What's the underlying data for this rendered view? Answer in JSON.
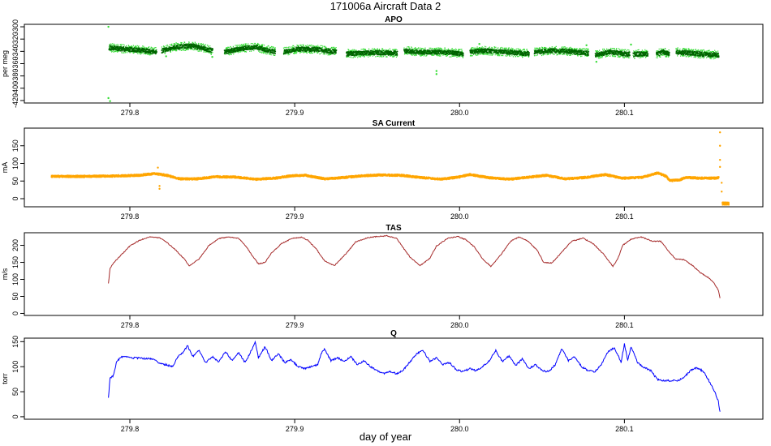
{
  "figure": {
    "title": "171006a   Aircraft Data 2",
    "xlabel": "day of year"
  },
  "chart_data": [
    {
      "type": "scatter",
      "title": "APO",
      "xlabel": "",
      "ylabel": "per meg",
      "xlim": [
        279.736,
        280.184
      ],
      "ylim": [
        -424,
        -296
      ],
      "xticks": [
        279.8,
        279.9,
        280.0,
        280.1
      ],
      "xtick_labels": [
        "279.8",
        "279.9",
        "280.0",
        "280.1"
      ],
      "yticks": [
        -420,
        -400,
        -380,
        -360,
        -340,
        -320,
        -300
      ],
      "ytick_labels": [
        "-420",
        "-400",
        "-380",
        "-360",
        "-340",
        "-320",
        "-300"
      ],
      "tick_side_rotated": true,
      "colors": {
        "raw": "#33dd33",
        "smoothed": "#006400"
      },
      "segments": [
        [
          279.787,
          279.816
        ],
        [
          279.819,
          279.85
        ],
        [
          279.857,
          279.888
        ],
        [
          279.893,
          279.925
        ],
        [
          279.931,
          279.962
        ],
        [
          279.966,
          280.002
        ],
        [
          280.006,
          280.042
        ],
        [
          280.045,
          280.078
        ],
        [
          280.082,
          280.103
        ],
        [
          280.105,
          280.114
        ],
        [
          280.119,
          280.127
        ],
        [
          280.131,
          280.157
        ]
      ],
      "series": [
        {
          "x": [
            279.787,
            279.795,
            279.805,
            279.816,
            279.819,
            279.828,
            279.838,
            279.85,
            279.857,
            279.866,
            279.876,
            279.888,
            279.893,
            279.902,
            279.913,
            279.925,
            279.931,
            279.94,
            279.95,
            279.962,
            279.966,
            279.975,
            279.988,
            280.002,
            280.006,
            280.015,
            280.028,
            280.042,
            280.045,
            280.055,
            280.066,
            280.078,
            280.082,
            280.091,
            280.103,
            280.105,
            280.11,
            280.114,
            280.119,
            280.123,
            280.127,
            280.131,
            280.14,
            280.15,
            280.157
          ],
          "y": [
            -333,
            -335,
            -337,
            -340,
            -338,
            -332,
            -330,
            -338,
            -340,
            -335,
            -332,
            -340,
            -340,
            -335,
            -336,
            -340,
            -343,
            -342,
            -341,
            -342,
            -338,
            -340,
            -340,
            -343,
            -340,
            -338,
            -340,
            -343,
            -340,
            -338,
            -339,
            -342,
            -345,
            -340,
            -344,
            -344,
            -343,
            -343,
            -344,
            -340,
            -343,
            -340,
            -342,
            -344,
            -345
          ]
        }
      ],
      "outliers": [
        {
          "x": 279.787,
          "y": -300
        },
        {
          "x": 279.787,
          "y": -416
        },
        {
          "x": 279.788,
          "y": -421
        },
        {
          "x": 279.986,
          "y": -372
        },
        {
          "x": 279.986,
          "y": -377
        },
        {
          "x": 280.104,
          "y": -329
        },
        {
          "x": 280.077,
          "y": -330
        },
        {
          "x": 280.083,
          "y": -357
        },
        {
          "x": 280.012,
          "y": -328
        },
        {
          "x": 279.822,
          "y": -348
        },
        {
          "x": 279.85,
          "y": -349
        }
      ]
    },
    {
      "type": "scatter",
      "title": "SA Current",
      "xlabel": "",
      "ylabel": "mA",
      "xlim": [
        279.736,
        280.184
      ],
      "ylim": [
        -23,
        200
      ],
      "xticks": [
        279.8,
        279.9,
        280.0,
        280.1
      ],
      "xtick_labels": [
        "279.8",
        "279.9",
        "280.0",
        "280.1"
      ],
      "yticks": [
        0,
        50,
        100,
        150
      ],
      "ytick_labels": [
        "0",
        "50",
        "100",
        "150"
      ],
      "color": "#ffa500",
      "x": [
        279.752,
        279.77,
        279.79,
        279.805,
        279.815,
        279.822,
        279.83,
        279.84,
        279.852,
        279.864,
        279.876,
        279.888,
        279.898,
        279.906,
        279.918,
        279.93,
        279.941,
        279.952,
        279.964,
        279.976,
        279.988,
        279.999,
        280.006,
        280.018,
        280.03,
        280.04,
        280.052,
        280.064,
        280.076,
        280.088,
        280.098,
        280.11,
        280.12,
        280.125,
        280.127,
        280.133,
        280.137,
        280.145,
        280.155,
        280.157
      ],
      "y": [
        65,
        65,
        66,
        68,
        73,
        68,
        58,
        58,
        64,
        63,
        57,
        60,
        67,
        68,
        58,
        62,
        67,
        69,
        68,
        62,
        57,
        63,
        70,
        61,
        57,
        62,
        68,
        58,
        62,
        70,
        60,
        62,
        75,
        65,
        53,
        55,
        62,
        60,
        60,
        62
      ],
      "tail": {
        "x_start": 280.159,
        "x_end": 280.163,
        "y": -12
      },
      "outliers": [
        {
          "x": 279.818,
          "y": 28
        },
        {
          "x": 279.818,
          "y": 36
        },
        {
          "x": 279.817,
          "y": 88
        },
        {
          "x": 280.158,
          "y": 188
        },
        {
          "x": 280.158,
          "y": 150
        },
        {
          "x": 280.158,
          "y": 110
        },
        {
          "x": 280.158,
          "y": 90
        },
        {
          "x": 280.159,
          "y": 45
        },
        {
          "x": 280.159,
          "y": 20
        }
      ]
    },
    {
      "type": "line",
      "title": "TAS",
      "xlabel": "",
      "ylabel": "m/s",
      "xlim": [
        279.736,
        280.184
      ],
      "ylim": [
        -6,
        237
      ],
      "xticks": [
        279.8,
        279.9,
        280.0,
        280.1
      ],
      "xtick_labels": [
        "279.8",
        "279.9",
        "280.0",
        "280.1"
      ],
      "yticks": [
        0,
        50,
        100,
        150,
        200
      ],
      "ytick_labels": [
        "0",
        "50",
        "100",
        "150",
        "200"
      ],
      "color": "#a52a2a",
      "x": [
        279.787,
        279.788,
        279.79,
        279.795,
        279.8,
        279.806,
        279.812,
        279.818,
        279.822,
        279.827,
        279.833,
        279.836,
        279.842,
        279.848,
        279.854,
        279.86,
        279.866,
        279.87,
        279.874,
        279.878,
        279.882,
        279.886,
        279.892,
        279.898,
        279.904,
        279.908,
        279.913,
        279.918,
        279.924,
        279.931,
        279.937,
        279.944,
        279.95,
        279.956,
        279.962,
        279.965,
        279.97,
        279.976,
        279.982,
        279.986,
        279.993,
        279.999,
        280.004,
        280.009,
        280.014,
        280.019,
        280.025,
        280.031,
        280.036,
        280.041,
        280.047,
        280.051,
        280.056,
        280.062,
        280.068,
        280.075,
        280.081,
        280.087,
        280.093,
        280.096,
        280.099,
        280.104,
        280.11,
        280.117,
        280.122,
        280.127,
        280.131,
        280.136,
        280.141,
        280.146,
        280.151,
        280.154,
        280.157,
        280.158
      ],
      "y": [
        88,
        132,
        148,
        173,
        198,
        215,
        225,
        222,
        210,
        190,
        160,
        140,
        160,
        200,
        220,
        225,
        220,
        200,
        172,
        145,
        150,
        178,
        205,
        220,
        224,
        215,
        190,
        155,
        140,
        175,
        210,
        222,
        226,
        228,
        220,
        198,
        165,
        140,
        162,
        198,
        221,
        226,
        216,
        195,
        160,
        138,
        172,
        212,
        224,
        214,
        186,
        150,
        148,
        180,
        212,
        221,
        205,
        176,
        138,
        160,
        200,
        218,
        225,
        212,
        212,
        182,
        160,
        158,
        142,
        120,
        105,
        92,
        68,
        45
      ]
    },
    {
      "type": "line",
      "title": "Q",
      "xlabel": "",
      "ylabel": "torr",
      "xlim": [
        279.736,
        280.184
      ],
      "ylim": [
        -5,
        157
      ],
      "xticks": [
        279.8,
        279.9,
        280.0,
        280.1
      ],
      "xtick_labels": [
        "279.8",
        "279.9",
        "280.0",
        "280.1"
      ],
      "yticks": [
        0,
        50,
        100,
        150
      ],
      "ytick_labels": [
        "0",
        "50",
        "100",
        "150"
      ],
      "color": "#0000ff",
      "x": [
        279.787,
        279.788,
        279.79,
        279.792,
        279.795,
        279.8,
        279.81,
        279.815,
        279.818,
        279.822,
        279.826,
        279.829,
        279.832,
        279.835,
        279.838,
        279.842,
        279.846,
        279.85,
        279.854,
        279.858,
        279.862,
        279.866,
        279.87,
        279.874,
        279.876,
        279.878,
        279.882,
        279.886,
        279.89,
        279.894,
        279.898,
        279.902,
        279.906,
        279.91,
        279.914,
        279.916,
        279.918,
        279.922,
        279.926,
        279.93,
        279.934,
        279.938,
        279.942,
        279.946,
        279.95,
        279.954,
        279.958,
        279.962,
        279.966,
        279.97,
        279.974,
        279.978,
        279.982,
        279.986,
        279.99,
        279.994,
        279.998,
        280.002,
        280.006,
        280.01,
        280.014,
        280.018,
        280.022,
        280.026,
        280.03,
        280.034,
        280.038,
        280.042,
        280.046,
        280.05,
        280.054,
        280.058,
        280.062,
        280.066,
        280.07,
        280.074,
        280.078,
        280.082,
        280.086,
        280.09,
        280.094,
        280.098,
        280.1,
        280.102,
        280.104,
        280.108,
        280.112,
        280.116,
        280.12,
        280.124,
        280.128,
        280.132,
        280.136,
        280.14,
        280.144,
        280.148,
        280.152,
        280.155,
        280.157,
        280.158
      ],
      "y": [
        38,
        78,
        82,
        110,
        120,
        118,
        116,
        115,
        106,
        104,
        100,
        120,
        128,
        142,
        120,
        132,
        108,
        120,
        110,
        130,
        112,
        128,
        108,
        135,
        150,
        118,
        140,
        112,
        126,
        108,
        114,
        100,
        96,
        100,
        104,
        126,
        135,
        112,
        118,
        110,
        120,
        104,
        112,
        100,
        92,
        86,
        90,
        86,
        94,
        110,
        126,
        132,
        110,
        118,
        104,
        108,
        94,
        90,
        96,
        92,
        100,
        112,
        132,
        110,
        122,
        102,
        116,
        96,
        104,
        92,
        90,
        104,
        136,
        112,
        120,
        100,
        92,
        90,
        104,
        130,
        138,
        108,
        146,
        112,
        140,
        108,
        98,
        92,
        74,
        72,
        72,
        72,
        78,
        92,
        98,
        90,
        68,
        48,
        30,
        10
      ]
    }
  ]
}
